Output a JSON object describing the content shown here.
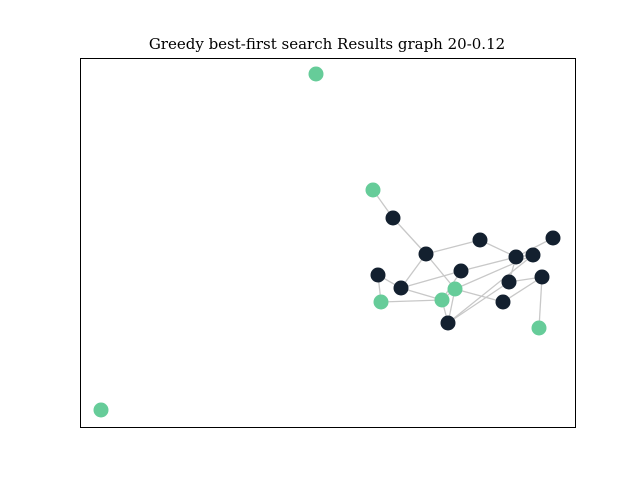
{
  "title": "Greedy best-first search Results graph 20-0.12",
  "colors": {
    "visited": "#66cc99",
    "unvisited": "#13202f",
    "edge": "#c8c8c8"
  },
  "graph": {
    "nodes": [
      {
        "id": "n0",
        "state": "visited"
      },
      {
        "id": "n1",
        "state": "visited"
      },
      {
        "id": "n2",
        "state": "unvisited"
      },
      {
        "id": "n3",
        "state": "unvisited"
      },
      {
        "id": "n4",
        "state": "unvisited"
      },
      {
        "id": "n5",
        "state": "unvisited"
      },
      {
        "id": "n6",
        "state": "visited"
      },
      {
        "id": "n7",
        "state": "unvisited"
      },
      {
        "id": "n8",
        "state": "unvisited"
      },
      {
        "id": "n9",
        "state": "unvisited"
      },
      {
        "id": "n10",
        "state": "unvisited"
      },
      {
        "id": "n11",
        "state": "unvisited"
      },
      {
        "id": "n12",
        "state": "visited"
      },
      {
        "id": "n13",
        "state": "visited"
      },
      {
        "id": "n14",
        "state": "unvisited"
      },
      {
        "id": "n15",
        "state": "unvisited"
      },
      {
        "id": "n16",
        "state": "unvisited"
      },
      {
        "id": "n17",
        "state": "unvisited"
      },
      {
        "id": "n18",
        "state": "visited"
      },
      {
        "id": "n19",
        "state": "visited"
      }
    ],
    "edges": [
      [
        "n1",
        "n2"
      ],
      [
        "n2",
        "n3"
      ],
      [
        "n3",
        "n4"
      ],
      [
        "n4",
        "n7"
      ],
      [
        "n7",
        "n5"
      ],
      [
        "n3",
        "n9"
      ],
      [
        "n3",
        "n12"
      ],
      [
        "n9",
        "n13"
      ],
      [
        "n9",
        "n10"
      ],
      [
        "n10",
        "n13"
      ],
      [
        "n10",
        "n7"
      ],
      [
        "n13",
        "n15"
      ],
      [
        "n15",
        "n11"
      ],
      [
        "n11",
        "n7"
      ],
      [
        "n11",
        "n16"
      ],
      [
        "n16",
        "n18"
      ],
      [
        "n12",
        "n13"
      ],
      [
        "n12",
        "n15"
      ],
      [
        "n15",
        "n17"
      ],
      [
        "n17",
        "n12"
      ],
      [
        "n12",
        "n14"
      ],
      [
        "n14",
        "n16"
      ],
      [
        "n9",
        "n8"
      ],
      [
        "n8",
        "n6"
      ],
      [
        "n6",
        "n13"
      ],
      [
        "n7",
        "n17"
      ]
    ]
  }
}
